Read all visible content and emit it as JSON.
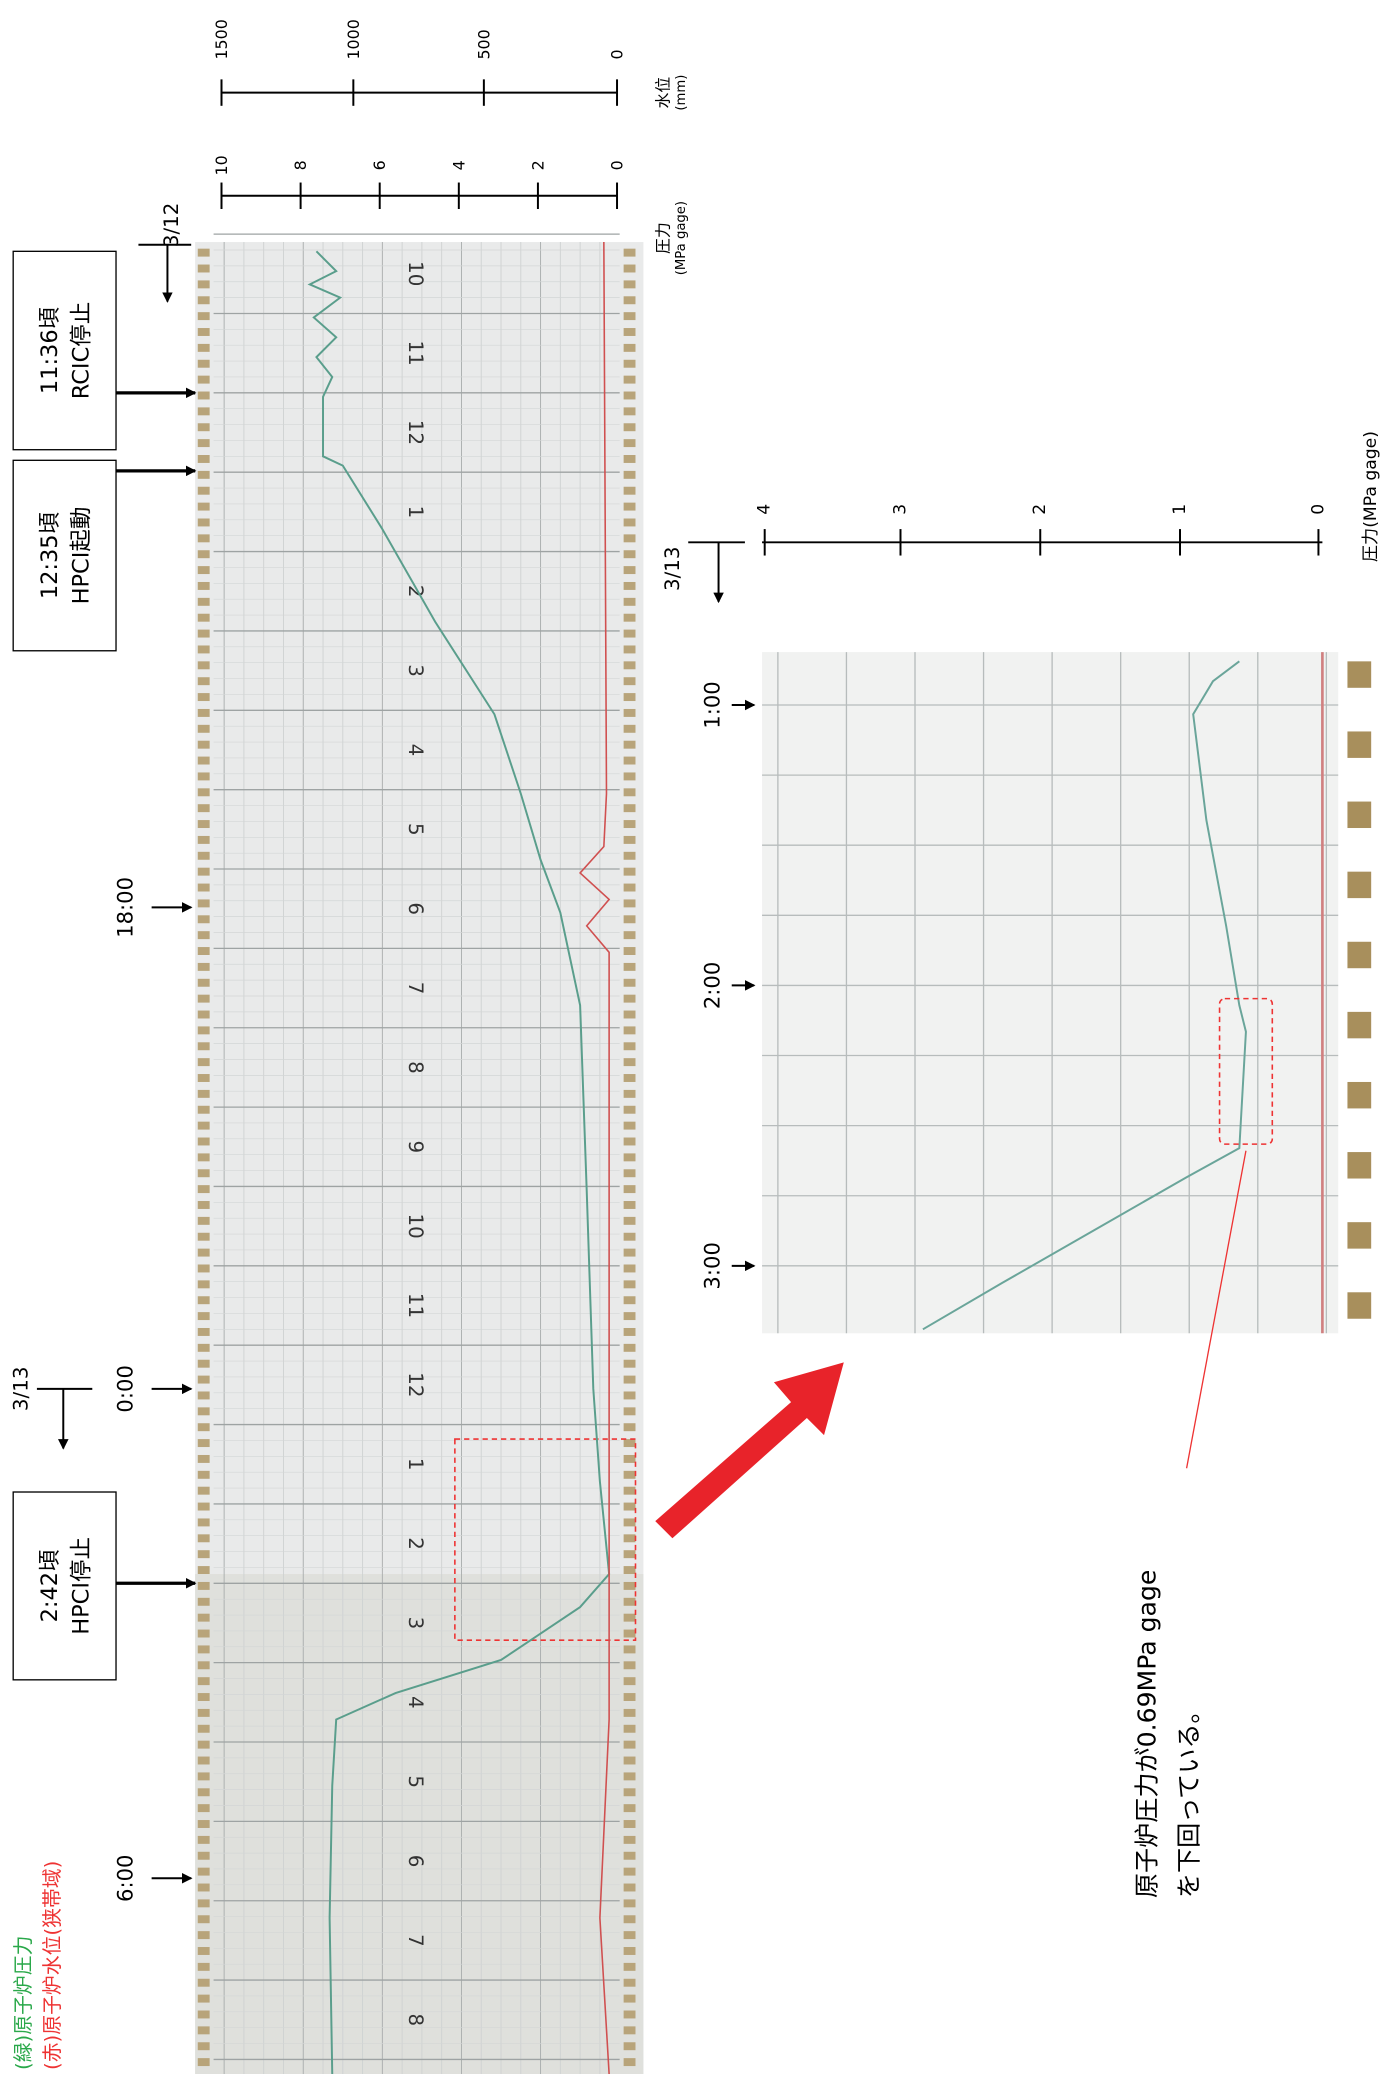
{
  "water_level_axis": {
    "label": "水位",
    "unit": "(mm)",
    "ticks": [
      "1500",
      "1000",
      "500",
      "0"
    ]
  },
  "pressure_axis": {
    "label": "圧力",
    "unit": "(MPa gage)",
    "ticks": [
      "10",
      "8",
      "6",
      "4",
      "2",
      "0"
    ]
  },
  "strip_hours": [
    "10",
    "11",
    "12",
    "1",
    "2",
    "3",
    "4",
    "5",
    "6",
    "7",
    "8",
    "9",
    "10",
    "11",
    "12",
    "1",
    "2",
    "3",
    "4",
    "5",
    "6",
    "7",
    "8"
  ],
  "annotations": {
    "date_3_12": "3/12",
    "rcic_stop": {
      "time": "11:36頃",
      "event": "RCIC停止"
    },
    "hpci_start": {
      "time": "12:35頃",
      "event": "HPCI起動"
    },
    "time_18": "18:00",
    "date_3_13": "3/13",
    "time_0": "0:00",
    "hpci_stop": {
      "time": "2:42頃",
      "event": "HPCI停止"
    },
    "time_6": "6:00"
  },
  "legend": [
    "(緑)原子炉圧力",
    "(赤)原子炉水位(狭帯域)"
  ],
  "zoom": {
    "date": "3/13",
    "pressure_axis": {
      "label": "圧力(MPa gage)",
      "ticks": [
        "4",
        "3",
        "2",
        "1",
        "0"
      ]
    },
    "times": [
      "1:00",
      "2:00",
      "3:00"
    ],
    "note": [
      "原子炉圧力が0.69MPa gage",
      "を下回っている。"
    ]
  }
}
